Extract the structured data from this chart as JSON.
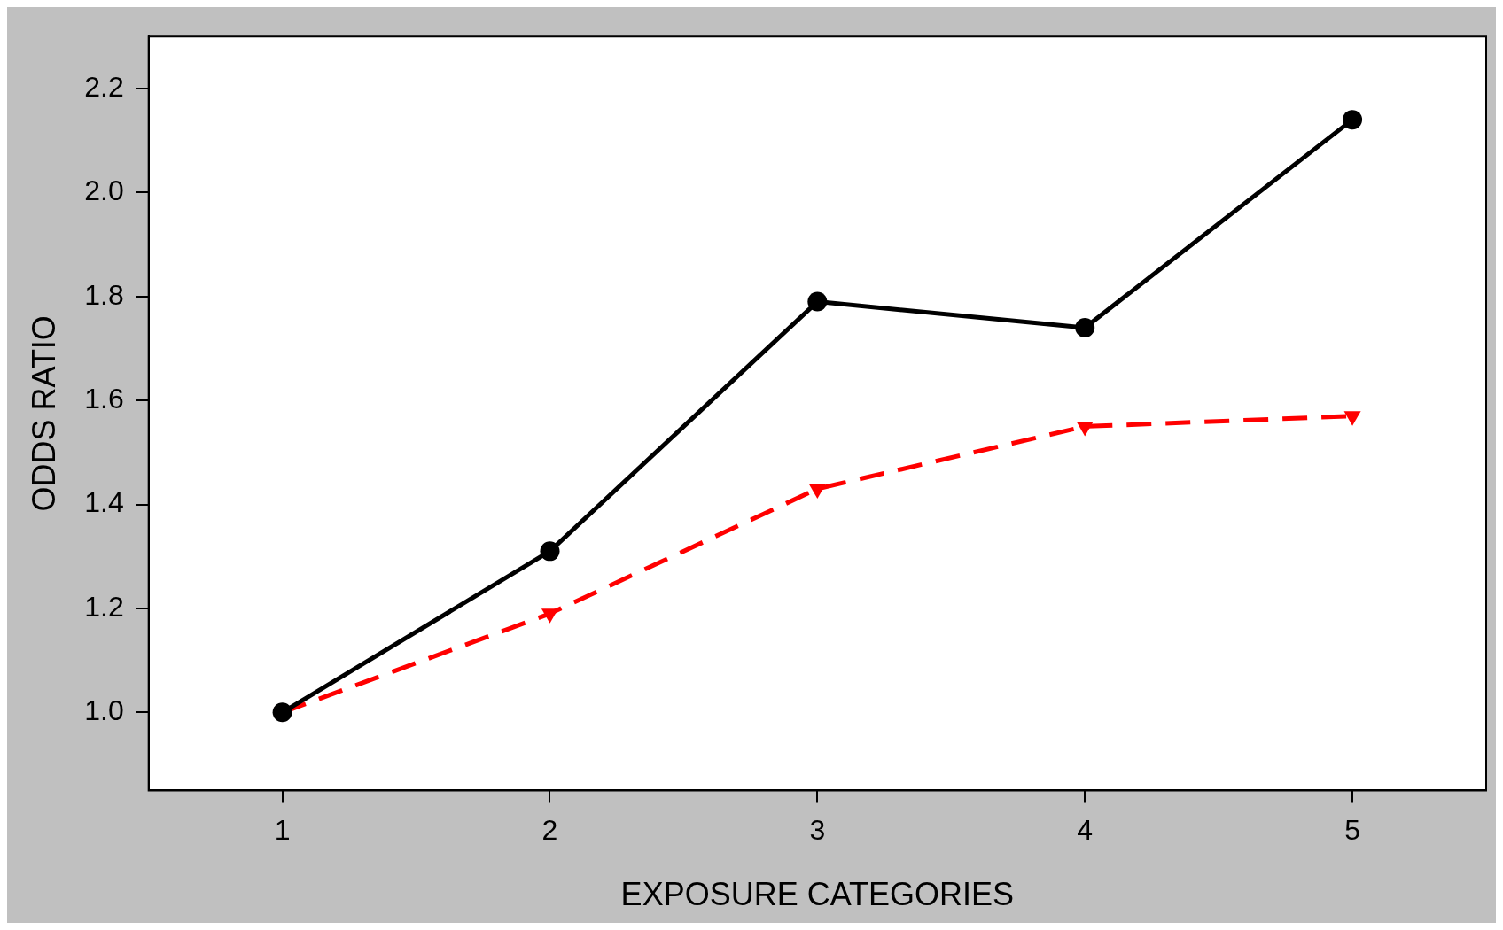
{
  "chart_data": {
    "type": "line",
    "xlabel": "EXPOSURE CATEGORIES",
    "ylabel": "ODDS RATIO",
    "x": [
      1,
      2,
      3,
      4,
      5
    ],
    "series": [
      {
        "color": "#000000",
        "values": [
          1.0,
          1.31,
          1.79,
          1.74,
          2.14
        ],
        "marker": "circle",
        "line_style": "solid"
      },
      {
        "color": "#ff0000",
        "values": [
          1.0,
          1.19,
          1.43,
          1.55,
          1.57
        ],
        "marker": "triangle",
        "line_style": "dashed"
      }
    ],
    "xlim": [
      0.5,
      5.5
    ],
    "xticks": [
      1,
      2,
      3,
      4,
      5
    ],
    "ylim": [
      0.85,
      2.3
    ],
    "yticks": [
      {
        "value": 1.0,
        "label": "1.0"
      },
      1.2,
      1.4,
      1.6,
      1.8,
      {
        "value": 2.0,
        "label": "2.0"
      },
      2.2
    ],
    "grid": false,
    "legend": false
  }
}
